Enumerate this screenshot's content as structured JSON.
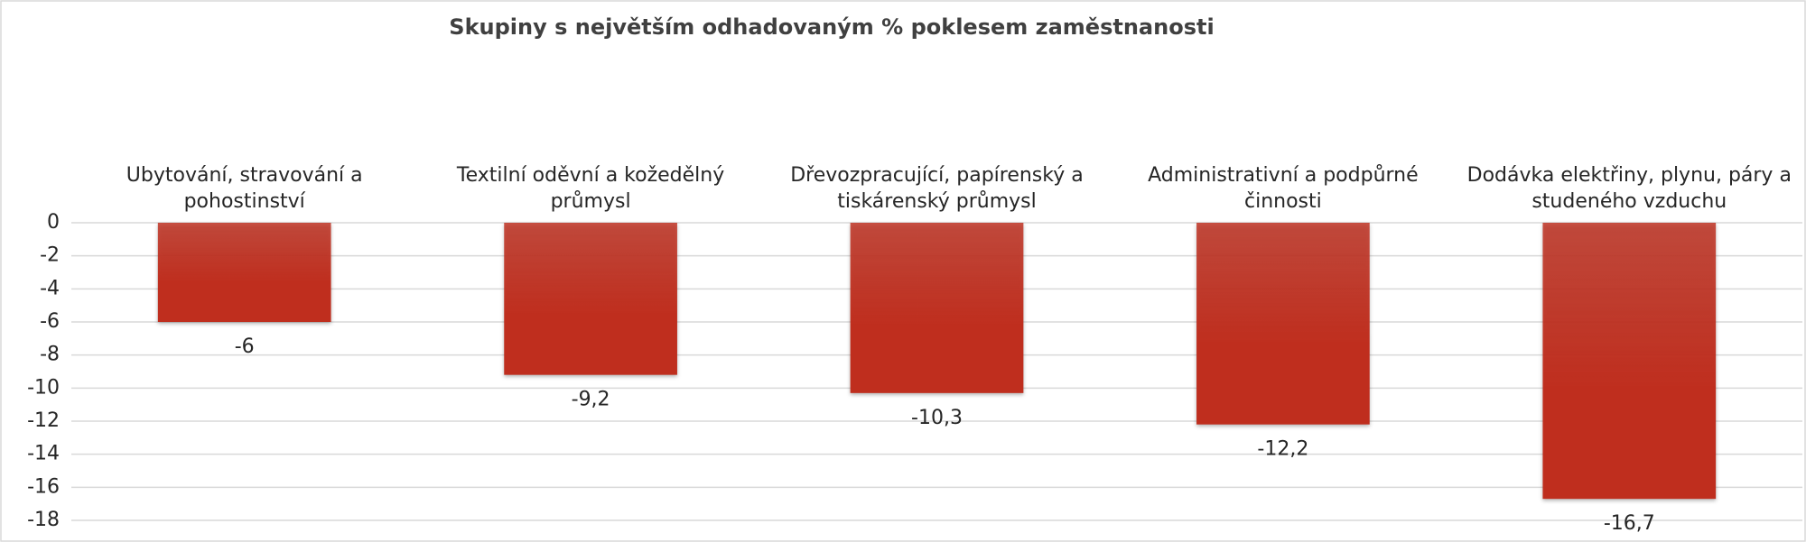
{
  "chart_data": {
    "type": "bar",
    "title": "Skupiny s největším odhadovaným % poklesem zaměstnanosti",
    "categories": [
      "Ubytování, stravování a pohostinství",
      "Textilní oděvní a kožedělný průmysl",
      "Dřevozpracující, papírenský a tiskárenský průmysl",
      "Administrativní a podpůrné činnosti",
      "Dodávka elektřiny, plynu, páry a studeného vzduchu"
    ],
    "values": [
      -6,
      -9.2,
      -10.3,
      -12.2,
      -16.7
    ],
    "value_labels": [
      "-6",
      "-9,2",
      "-10,3",
      "-12,2",
      "-16,7"
    ],
    "color": "#bf2e1e",
    "ylim": [
      -18,
      0
    ],
    "yticks": [
      0,
      -2,
      -4,
      -6,
      -8,
      -10,
      -12,
      -14,
      -16,
      -18
    ],
    "grid": true
  }
}
